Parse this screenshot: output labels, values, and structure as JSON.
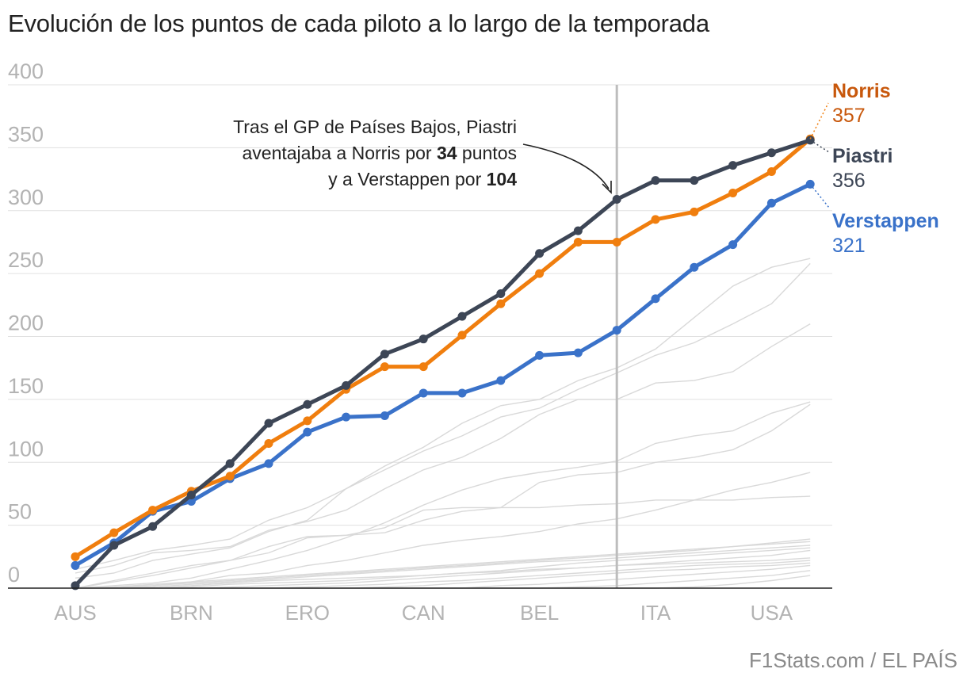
{
  "page": {
    "title": "Evolución de los puntos de cada piloto a lo largo de la temporada",
    "source": "F1Stats.com / EL PAÍS"
  },
  "annotation": {
    "line1": "Tras el GP de Países Bajos, Piastri",
    "line2_pre": "aventajaba a Norris por ",
    "line2_num": "34",
    "line2_post": " puntos",
    "line3_pre": "y a Verstappen por ",
    "line3_num": "104"
  },
  "colors": {
    "Norris": "#f07e0e",
    "Norris_label": "#c8580c",
    "Piastri": "#3d4656",
    "Verstappen": "#3a72c9",
    "others": "#d9d9d9",
    "grid": "#e0e0e0",
    "axis_text": "#b3b3b3",
    "marker_line": "#bdbdbd"
  },
  "chart_data": {
    "type": "line",
    "title": "Evolución de los puntos de cada piloto a lo largo de la temporada",
    "xlabel": "",
    "ylabel": "",
    "ylim": [
      0,
      400
    ],
    "yticks": [
      0,
      50,
      100,
      150,
      200,
      250,
      300,
      350,
      400
    ],
    "grid": true,
    "x_tick_labels": [
      "AUS",
      "BRN",
      "ERO",
      "CAN",
      "BEL",
      "ITA",
      "USA"
    ],
    "x_tick_races": [
      1,
      4,
      7,
      10,
      13,
      16,
      19
    ],
    "race_count": 20,
    "highlight_race": 15,
    "series": [
      {
        "name": "Norris",
        "end_value": "357",
        "values": [
          25,
          44,
          62,
          77,
          89,
          115,
          133,
          158,
          176,
          176,
          201,
          226,
          250,
          275,
          275,
          293,
          299,
          314,
          331,
          357
        ]
      },
      {
        "name": "Piastri",
        "end_value": "356",
        "values": [
          2,
          34,
          49,
          74,
          99,
          131,
          146,
          161,
          186,
          198,
          216,
          234,
          266,
          284,
          309,
          324,
          324,
          336,
          346,
          356
        ]
      },
      {
        "name": "Verstappen",
        "end_value": "321",
        "values": [
          18,
          36,
          61,
          69,
          87,
          99,
          124,
          136,
          137,
          155,
          155,
          165,
          185,
          187,
          205,
          230,
          255,
          273,
          306,
          321
        ]
      }
    ],
    "other_series": [
      [
        12,
        18,
        28,
        30,
        33,
        46,
        53,
        62,
        79,
        94,
        104,
        119,
        138,
        150,
        150,
        163,
        165,
        172,
        192,
        210
      ],
      [
        15,
        22,
        30,
        34,
        39,
        54,
        64,
        79,
        94,
        109,
        121,
        136,
        143,
        158,
        171,
        185,
        195,
        210,
        226,
        258
      ],
      [
        8,
        12,
        22,
        27,
        32,
        45,
        54,
        79,
        97,
        112,
        131,
        145,
        150,
        165,
        175,
        190,
        215,
        240,
        255,
        262
      ],
      [
        0,
        5,
        10,
        16,
        22,
        33,
        41,
        42,
        48,
        62,
        64,
        64,
        64,
        66,
        67,
        70,
        70,
        70,
        72,
        73
      ],
      [
        0,
        6,
        12,
        18,
        22,
        28,
        40,
        42,
        44,
        54,
        61,
        64,
        84,
        90,
        92,
        100,
        104,
        110,
        125,
        146
      ],
      [
        0,
        2,
        4,
        8,
        15,
        22,
        30,
        40,
        52,
        66,
        78,
        87,
        92,
        96,
        101,
        115,
        121,
        125,
        139,
        148
      ],
      [
        0,
        1,
        2,
        5,
        10,
        12,
        18,
        22,
        28,
        34,
        38,
        41,
        45,
        51,
        55,
        62,
        70,
        78,
        84,
        92
      ],
      [
        0,
        0,
        2,
        4,
        6,
        8,
        10,
        12,
        14,
        16,
        18,
        20,
        22,
        24,
        26,
        28,
        30,
        33,
        36,
        39
      ],
      [
        0,
        1,
        3,
        5,
        7,
        9,
        11,
        13,
        15,
        17,
        19,
        21,
        23,
        25,
        27,
        29,
        31,
        33,
        35,
        37
      ],
      [
        0,
        0,
        1,
        3,
        5,
        7,
        9,
        11,
        13,
        15,
        17,
        19,
        21,
        22,
        24,
        26,
        28,
        30,
        32,
        34
      ],
      [
        0,
        0,
        0,
        2,
        4,
        6,
        7,
        8,
        9,
        10,
        12,
        14,
        17,
        20,
        22,
        24,
        26,
        28,
        30,
        32
      ],
      [
        0,
        0,
        0,
        1,
        3,
        4,
        5,
        6,
        8,
        10,
        12,
        13,
        15,
        16,
        18,
        20,
        22,
        24,
        26,
        30
      ],
      [
        0,
        0,
        0,
        0,
        1,
        2,
        3,
        4,
        6,
        8,
        10,
        12,
        14,
        16,
        18,
        19,
        20,
        21,
        22,
        24
      ],
      [
        0,
        0,
        0,
        0,
        0,
        0,
        1,
        2,
        3,
        5,
        6,
        8,
        10,
        12,
        14,
        16,
        18,
        19,
        20,
        22
      ],
      [
        0,
        0,
        0,
        0,
        0,
        0,
        0,
        0,
        1,
        2,
        4,
        6,
        8,
        10,
        12,
        14,
        15,
        17,
        18,
        20
      ],
      [
        0,
        0,
        0,
        0,
        0,
        0,
        0,
        0,
        0,
        0,
        0,
        2,
        3,
        5,
        7,
        9,
        11,
        13,
        15,
        18
      ],
      [
        0,
        0,
        0,
        0,
        0,
        0,
        0,
        0,
        0,
        0,
        0,
        0,
        0,
        1,
        2,
        4,
        6,
        8,
        10,
        14
      ],
      [
        0,
        0,
        0,
        0,
        0,
        0,
        0,
        0,
        0,
        0,
        0,
        0,
        0,
        0,
        0,
        0,
        1,
        3,
        6,
        10
      ]
    ]
  }
}
